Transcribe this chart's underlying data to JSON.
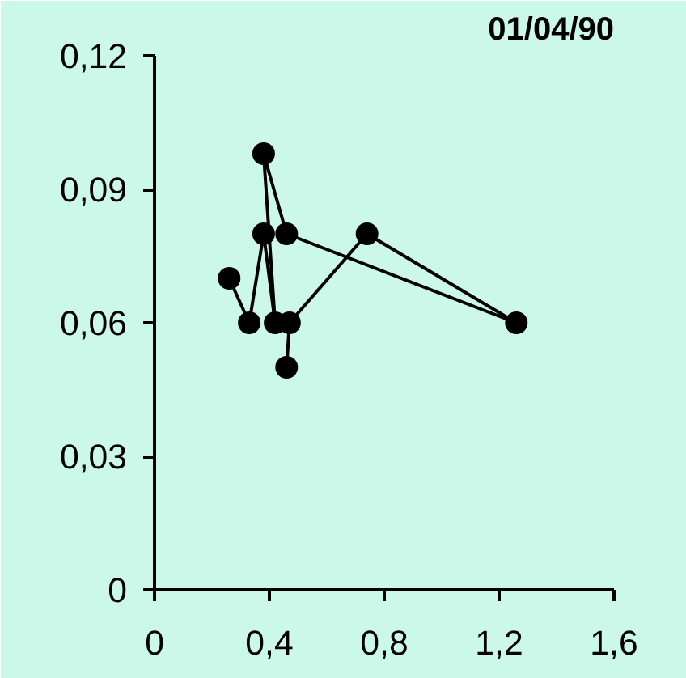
{
  "chart_data": {
    "type": "line",
    "title": "01/04/90",
    "x": [
      0.26,
      0.33,
      0.38,
      0.42,
      0.38,
      0.46,
      1.26,
      0.74,
      0.47,
      0.46
    ],
    "series": [
      {
        "color": "#000000",
        "values": [
          0.07,
          0.06,
          0.08,
          0.06,
          0.098,
          0.08,
          0.06,
          0.08,
          0.06,
          0.05
        ]
      }
    ],
    "marker": "circle",
    "line_style": "solid",
    "grid": false,
    "xlim": [
      0,
      1.6
    ],
    "ylim": [
      0,
      0.12
    ],
    "xticks": [
      0,
      {
        "value": 0.4,
        "label": "0,4"
      },
      {
        "value": 0.8,
        "label": "0,8"
      },
      {
        "value": 1.2,
        "label": "1,2"
      },
      {
        "value": 1.6,
        "label": "1,6"
      }
    ],
    "yticks": [
      0,
      {
        "value": 0.03,
        "label": "0,03"
      },
      {
        "value": 0.06,
        "label": "0,06"
      },
      {
        "value": 0.09,
        "label": "0,09"
      },
      {
        "value": 0.12,
        "label": "0,12"
      }
    ]
  }
}
